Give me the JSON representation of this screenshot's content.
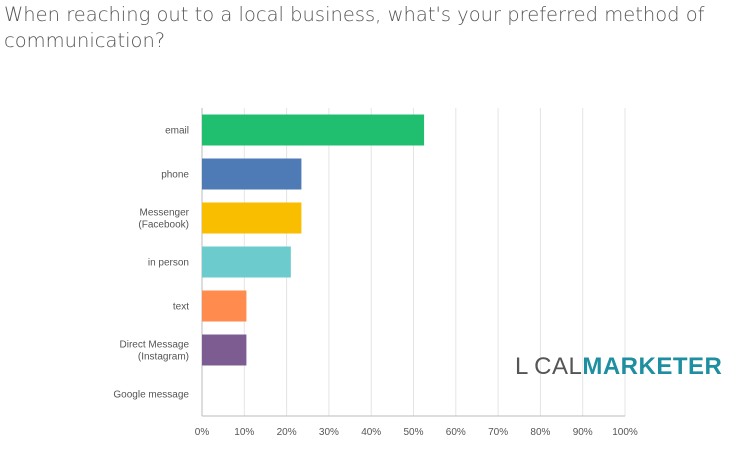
{
  "title": "When reaching out to a local business, what's your preferred method of communication?",
  "logo": {
    "local": "L CAL",
    "marketer": "MARKETER"
  },
  "chart_data": {
    "type": "bar",
    "orientation": "horizontal",
    "categories": [
      [
        "email"
      ],
      [
        "phone"
      ],
      [
        "Messenger",
        "(Facebook)"
      ],
      [
        "in person"
      ],
      [
        "text"
      ],
      [
        "Direct Message",
        "(Instagram)"
      ],
      [
        "Google message"
      ]
    ],
    "values": [
      52.5,
      23.5,
      23.5,
      21,
      10.5,
      10.5,
      0
    ],
    "colors": [
      "#1fbf6f",
      "#4e7ab5",
      "#f9be00",
      "#6ccbcd",
      "#ff8b4f",
      "#7d5c92",
      "#cccccc"
    ],
    "x_ticks": [
      "0%",
      "10%",
      "20%",
      "30%",
      "40%",
      "50%",
      "60%",
      "70%",
      "80%",
      "90%",
      "100%"
    ],
    "xlim": [
      0,
      100
    ],
    "grid": true
  }
}
